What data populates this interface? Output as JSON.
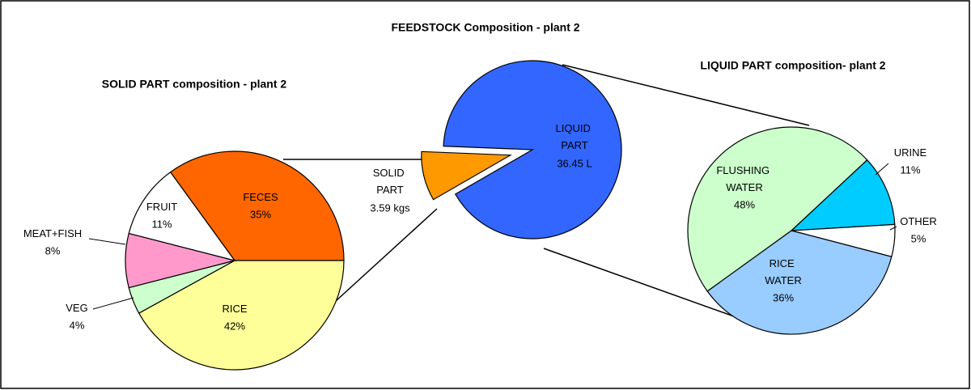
{
  "title": "FEEDSTOCK Composition - plant 2",
  "chart_data": [
    {
      "type": "pie",
      "title": "SOLID PART composition - plant 2",
      "categories": [
        "FECES",
        "RICE",
        "VEG",
        "MEAT+FISH",
        "FRUIT"
      ],
      "values": [
        35,
        42,
        4,
        8,
        11
      ],
      "value_labels": [
        "35%",
        "42%",
        "4%",
        "8%",
        "11%"
      ],
      "colors": [
        "#ff6600",
        "#ffff99",
        "#ccffcc",
        "#ff99cc",
        "#ffffff"
      ]
    },
    {
      "type": "pie",
      "categories": [
        "SOLID PART",
        "LIQUID PART"
      ],
      "values": [
        3.59,
        36.45
      ],
      "value_labels": [
        "3.59 kgs",
        "36.45 L"
      ],
      "colors": [
        "#ff9900",
        "#3366ff"
      ]
    },
    {
      "type": "pie",
      "title": "LIQUID PART composition- plant 2",
      "categories": [
        "URINE",
        "OTHER",
        "RICE WATER",
        "FLUSHING WATER"
      ],
      "values": [
        11,
        5,
        36,
        48
      ],
      "value_labels": [
        "11%",
        "5%",
        "36%",
        "48%"
      ],
      "colors": [
        "#00ccff",
        "#ffffff",
        "#99ccff",
        "#ccffcc"
      ]
    }
  ]
}
